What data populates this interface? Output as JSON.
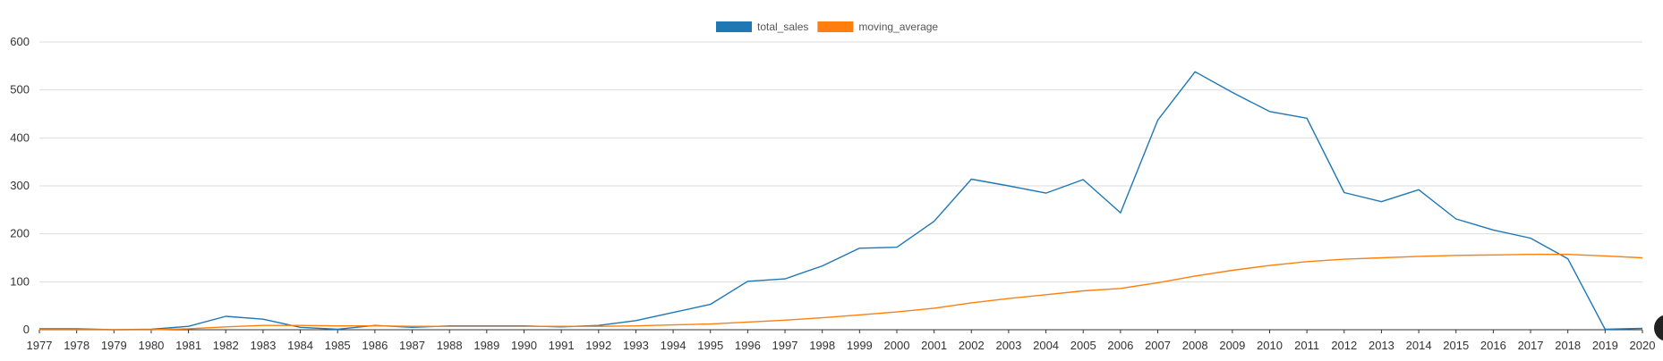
{
  "chart_data": {
    "type": "line",
    "legend_position": "top-center",
    "grid": true,
    "ylim": [
      0,
      600
    ],
    "yticks": [
      0,
      100,
      200,
      300,
      400,
      500,
      600
    ],
    "x": [
      "1977",
      "1978",
      "1979",
      "1980",
      "1981",
      "1982",
      "1983",
      "1984",
      "1985",
      "1986",
      "1987",
      "1988",
      "1989",
      "1990",
      "1991",
      "1992",
      "1993",
      "1994",
      "1995",
      "1996",
      "1997",
      "1998",
      "1999",
      "2000",
      "2001",
      "2002",
      "2003",
      "2004",
      "2005",
      "2006",
      "2007",
      "2008",
      "2009",
      "2010",
      "2011",
      "2012",
      "2013",
      "2014",
      "2015",
      "2016",
      "2017",
      "2018",
      "2019",
      "2020"
    ],
    "series": [
      {
        "name": "total_sales",
        "color": "#1f77b4",
        "values": [
          2,
          2,
          0,
          1,
          7,
          28,
          22,
          5,
          1,
          9,
          5,
          8,
          8,
          8,
          6,
          9,
          19,
          36,
          53,
          101,
          106,
          133,
          170,
          172,
          226,
          314,
          300,
          285,
          313,
          244,
          437,
          538,
          495,
          455,
          441,
          286,
          267,
          292,
          231,
          208,
          191,
          148,
          1,
          3
        ]
      },
      {
        "name": "moving_average",
        "color": "#ff7f0e",
        "values": [
          0,
          0,
          0,
          0,
          2,
          6,
          9,
          9,
          8,
          8,
          7,
          7,
          7,
          7,
          7,
          7,
          8,
          10,
          12,
          16,
          20,
          25,
          31,
          37,
          45,
          56,
          65,
          73,
          81,
          86,
          98,
          112,
          124,
          134,
          142,
          147,
          150,
          153,
          155,
          156,
          157,
          157,
          154,
          150
        ]
      }
    ]
  }
}
